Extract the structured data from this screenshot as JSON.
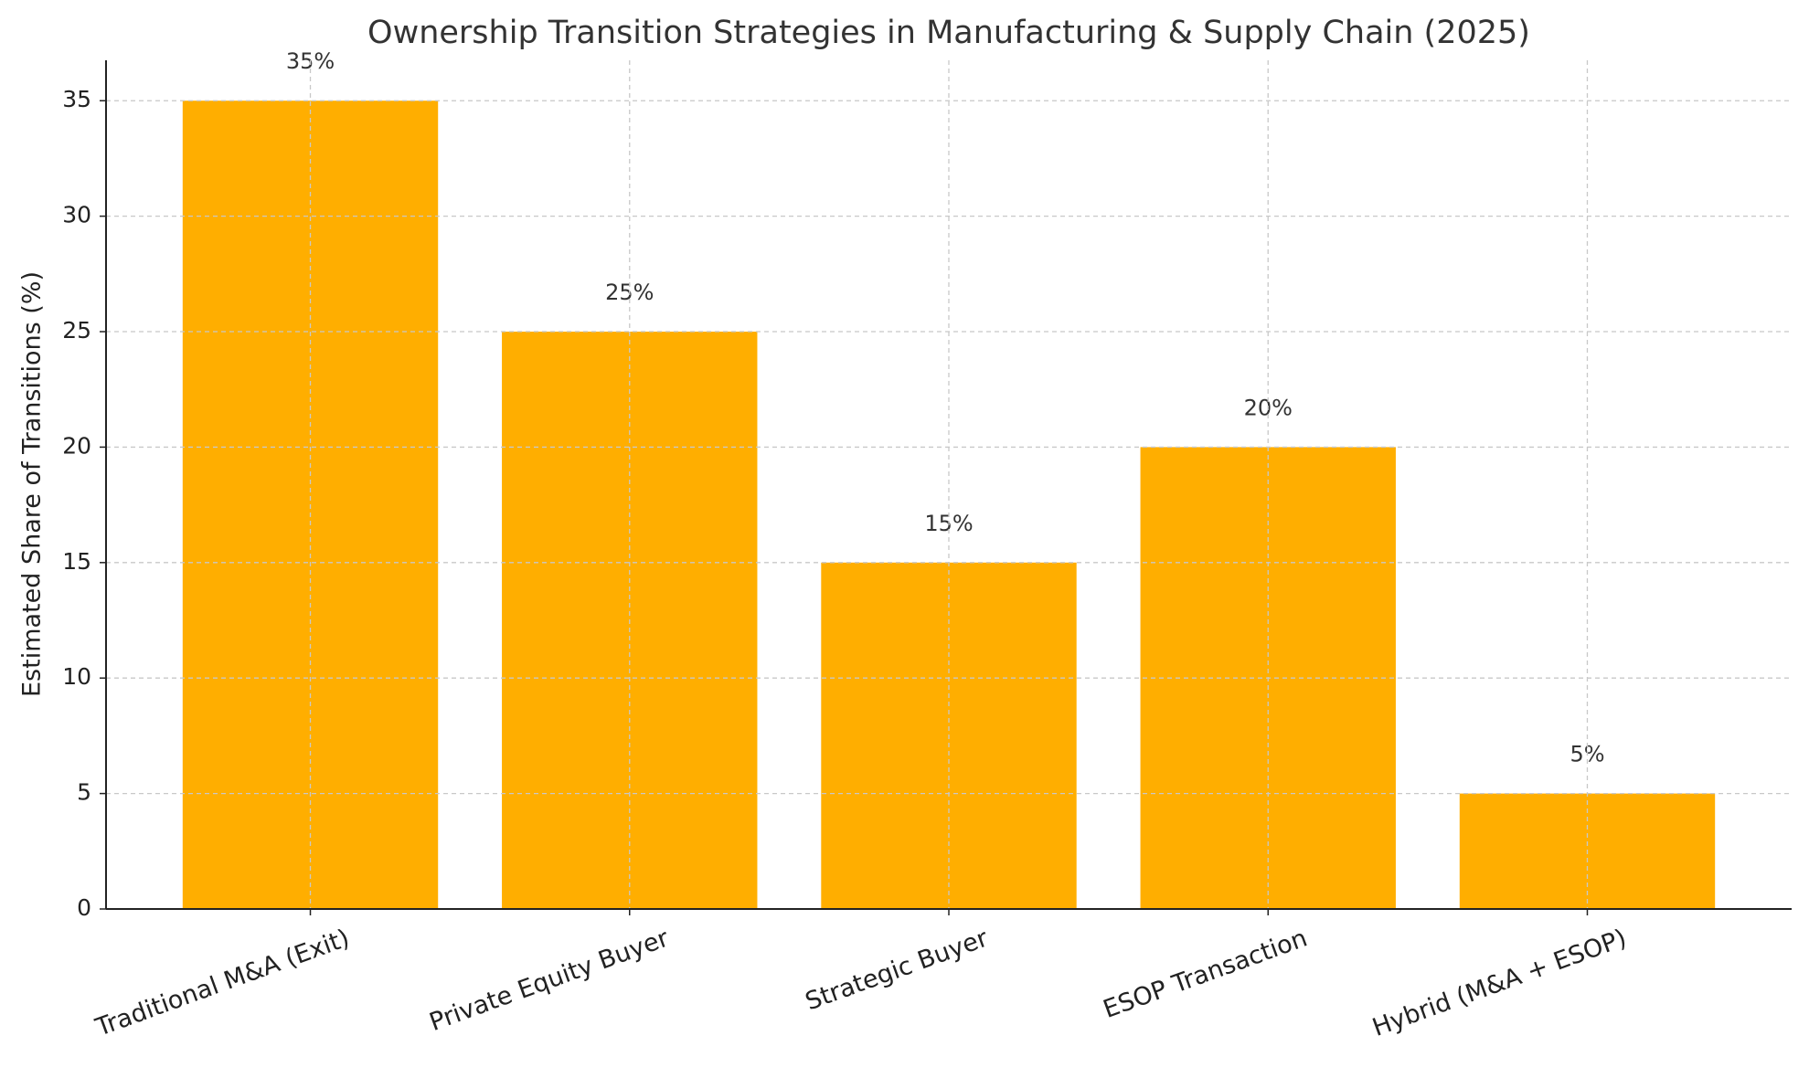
{
  "chart_data": {
    "type": "bar",
    "title": "Ownership Transition Strategies in Manufacturing & Supply Chain (2025)",
    "y_label": "Estimated Share of Transitions (%)",
    "categories": [
      "Traditional M&A (Exit)",
      "Private Equity Buyer",
      "Strategic Buyer",
      "ESOP Transaction",
      "Hybrid (M&A + ESOP)"
    ],
    "values": [
      35,
      25,
      15,
      20,
      5
    ],
    "value_labels": [
      "35%",
      "25%",
      "15%",
      "20%",
      "5%"
    ],
    "color": "#ffae00",
    "ylim": [
      0,
      36.75
    ],
    "yticks": [
      0,
      5,
      10,
      15,
      20,
      25,
      30,
      35
    ],
    "grid": true
  }
}
